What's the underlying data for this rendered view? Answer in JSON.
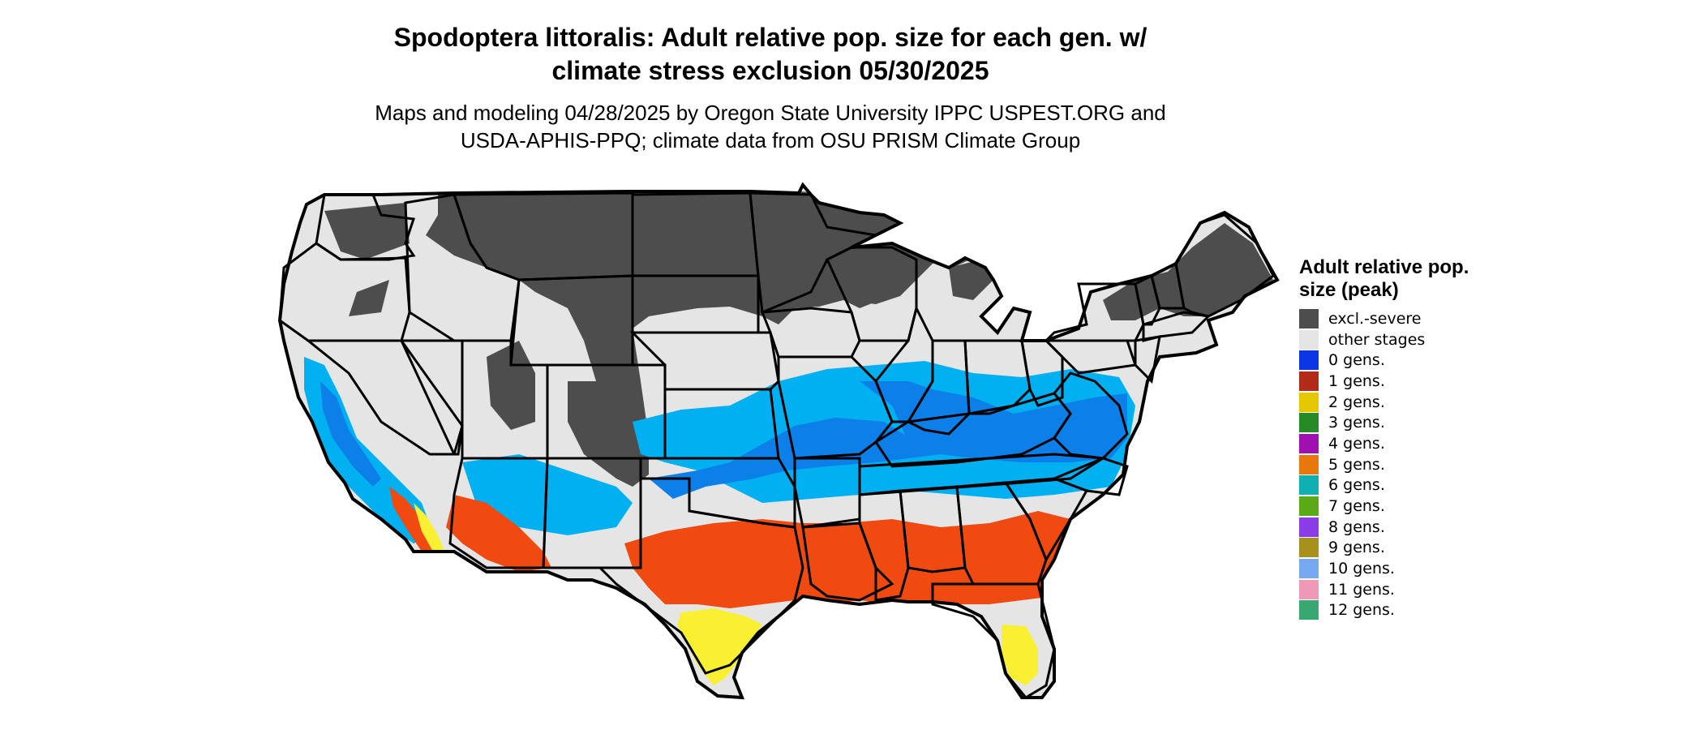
{
  "title": {
    "line1": "Spodoptera littoralis: Adult relative pop. size for each gen. w/",
    "line2": "climate stress exclusion 05/30/2025"
  },
  "subtitle": {
    "line1": "Maps and modeling 04/28/2025 by Oregon State University IPPC USPEST.ORG and",
    "line2": "USDA-APHIS-PPQ; climate data from OSU PRISM Climate Group"
  },
  "map": {
    "region": "Conterminous United States with state boundaries",
    "colors": {
      "land": "#e5e5e5",
      "excluded": "#4d4d4d",
      "border": "#000000",
      "zone_light_blue": "#00b0f0",
      "zone_blue": "#0c7fe8",
      "zone_orange_red": "#f04a10",
      "zone_yellow": "#f8f030"
    }
  },
  "legend": {
    "title": "Adult relative pop. size (peak)",
    "items": [
      {
        "label": "excl.-severe",
        "color": "#4d4d4d"
      },
      {
        "label": "other stages",
        "color": "#e5e5e5"
      },
      {
        "label": "0 gens.",
        "color": "#0a36e6"
      },
      {
        "label": "1 gens.",
        "color": "#b22a18"
      },
      {
        "label": "2 gens.",
        "color": "#e6c800"
      },
      {
        "label": "3 gens.",
        "color": "#268a26"
      },
      {
        "label": "4 gens.",
        "color": "#a010b0"
      },
      {
        "label": "5 gens.",
        "color": "#e8780c"
      },
      {
        "label": "6 gens.",
        "color": "#10b0b0"
      },
      {
        "label": "7 gens.",
        "color": "#5aaa18"
      },
      {
        "label": "8 gens.",
        "color": "#8a3ce6"
      },
      {
        "label": "9 gens.",
        "color": "#a8901c"
      },
      {
        "label": "10 gens.",
        "color": "#76aaf0"
      },
      {
        "label": "11 gens.",
        "color": "#f098b8"
      },
      {
        "label": "12 gens.",
        "color": "#38a870"
      }
    ]
  }
}
